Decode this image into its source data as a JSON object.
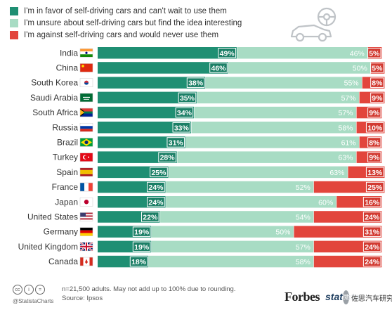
{
  "legend": [
    {
      "label": "I'm in favor of self-driving cars and can't wait to use them",
      "color": "#1f8f73"
    },
    {
      "label": "I'm unsure about self-driving cars but find the idea interesting",
      "color": "#a8dcc4"
    },
    {
      "label": "I'm against self-driving cars and would never use them",
      "color": "#e2453c"
    }
  ],
  "chart_data": {
    "type": "bar",
    "orientation": "horizontal",
    "stacked": true,
    "percent_stacked": true,
    "categories": [
      "India",
      "China",
      "South Korea",
      "Saudi Arabia",
      "South Africa",
      "Russia",
      "Brazil",
      "Turkey",
      "Spain",
      "France",
      "Japan",
      "United States",
      "Germany",
      "United Kingdom",
      "Canada"
    ],
    "flags": [
      "flag-india-icon",
      "flag-china-icon",
      "flag-south-korea-icon",
      "flag-saudi-arabia-icon",
      "flag-south-africa-icon",
      "flag-russia-icon",
      "flag-brazil-icon",
      "flag-turkey-icon",
      "flag-spain-icon",
      "flag-france-icon",
      "flag-japan-icon",
      "flag-united-states-icon",
      "flag-germany-icon",
      "flag-united-kingdom-icon",
      "flag-canada-icon"
    ],
    "series": [
      {
        "values": [
          49,
          46,
          38,
          35,
          34,
          33,
          31,
          28,
          25,
          24,
          24,
          22,
          19,
          19,
          18
        ],
        "color": "#1f8f73"
      },
      {
        "values": [
          46,
          50,
          55,
          57,
          57,
          58,
          61,
          63,
          63,
          52,
          60,
          54,
          50,
          57,
          58
        ],
        "color": "#a8dcc4"
      },
      {
        "values": [
          5,
          5,
          8,
          9,
          9,
          10,
          8,
          9,
          13,
          25,
          16,
          24,
          31,
          24,
          24
        ],
        "color": "#e2453c"
      }
    ],
    "value_suffix": "%",
    "xlim": [
      0,
      100
    ],
    "grid": false,
    "legend_position": "top-left"
  },
  "footer": {
    "note": "n=21,500 adults. May not add up to 100% due to rounding.",
    "source": "Source: Ipsos",
    "credit": "@StatistaCharts",
    "cc_icons": [
      "cc",
      "i",
      "="
    ]
  },
  "brands": {
    "forbes": "Forbes",
    "statista": "statista"
  },
  "watermark": {
    "badge": "微",
    "text": "佐思汽车研究"
  }
}
